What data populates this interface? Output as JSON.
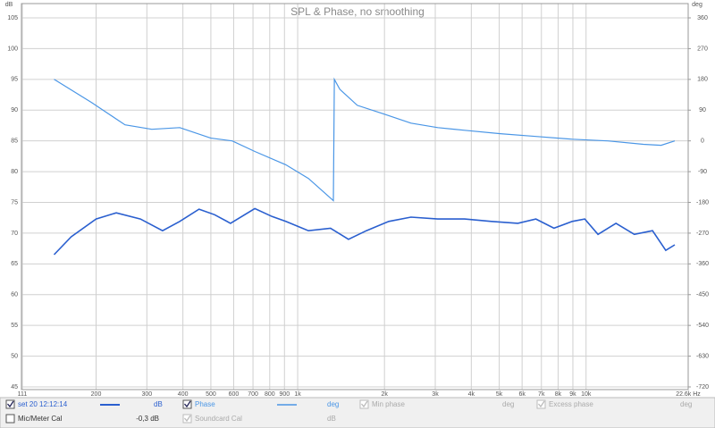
{
  "chart_data": {
    "type": "line",
    "title": "SPL & Phase, no smoothing",
    "ylabel": "dB",
    "y2label": "deg",
    "xlim": [
      111,
      22600
    ],
    "log_x": true,
    "xticks": [
      111,
      200,
      300,
      400,
      500,
      600,
      700,
      800,
      900,
      {
        "value": 1000,
        "label": "1k"
      },
      {
        "value": 2000,
        "label": "2k"
      },
      {
        "value": 3000,
        "label": "3k"
      },
      {
        "value": 4000,
        "label": "4k"
      },
      {
        "value": 5000,
        "label": "5k"
      },
      {
        "value": 6000,
        "label": "6k"
      },
      {
        "value": 7000,
        "label": "7k"
      },
      {
        "value": 8000,
        "label": "8k"
      },
      {
        "value": 9000,
        "label": "9k"
      },
      {
        "value": 10000,
        "label": "10k"
      },
      {
        "value": 22600,
        "label": "22.6k Hz"
      }
    ],
    "ylim": [
      45,
      105
    ],
    "yticks": [
      45,
      50,
      55,
      60,
      65,
      70,
      75,
      80,
      85,
      90,
      95,
      100,
      105
    ],
    "y2lim": [
      -720,
      360
    ],
    "y2ticks": [
      -720,
      -630,
      -540,
      -450,
      -360,
      -270,
      -180,
      -90,
      0,
      90,
      180,
      270,
      360
    ],
    "grid": true,
    "series": [
      {
        "name": "set 20 12:12:14",
        "unit": "dB",
        "color": "#2a5fcf",
        "x": [
          143,
          164,
          200,
          235,
          285,
          340,
          390,
          455,
          515,
          585,
          710,
          815,
          910,
          1090,
          1300,
          1500,
          1730,
          2070,
          2470,
          3060,
          3790,
          4700,
          5800,
          6700,
          7740,
          8950,
          9900,
          11000,
          12700,
          14700,
          17000,
          18900,
          20300
        ],
        "values": [
          66.5,
          69.4,
          72.3,
          73.3,
          72.3,
          70.4,
          71.9,
          73.9,
          73.0,
          71.6,
          74.0,
          72.7,
          71.9,
          70.4,
          70.8,
          69.0,
          70.4,
          71.9,
          72.6,
          72.3,
          72.3,
          71.9,
          71.6,
          72.3,
          70.8,
          71.9,
          72.3,
          69.8,
          71.6,
          69.8,
          70.4,
          67.2,
          68.1
        ]
      },
      {
        "name": "Phase",
        "unit": "deg",
        "color": "#4a96e6",
        "axis": "y2",
        "x": [
          143,
          193,
          252,
          312,
          390,
          500,
          593,
          710,
          910,
          1090,
          1330,
          1340,
          1400,
          1610,
          2000,
          2470,
          3060,
          3790,
          5040,
          6700,
          8950,
          11900,
          15800,
          18200,
          20300
        ],
        "values": [
          180,
          112,
          47,
          34,
          39,
          8,
          0,
          -31,
          -70,
          -110,
          -175,
          180,
          151,
          104,
          78,
          52,
          39,
          31,
          21,
          13,
          5,
          0,
          -10,
          -13,
          0
        ]
      }
    ]
  },
  "panel": {
    "min_phase": "Min phase",
    "min_phase_unit": "deg",
    "excess_phase": "Excess phase",
    "excess_phase_unit": "deg",
    "cal": "Mic/Meter Cal",
    "cal_value": "-0,3 dB",
    "soundcard": "Soundcard Cal",
    "soundcard_unit": "dB"
  }
}
